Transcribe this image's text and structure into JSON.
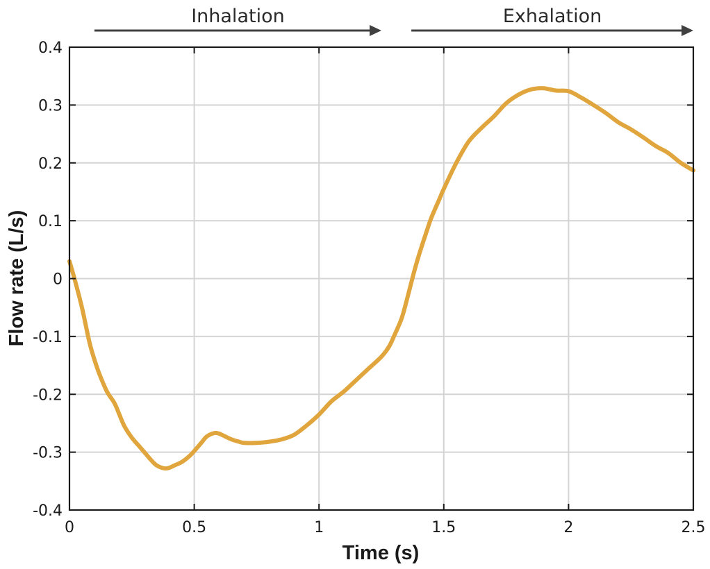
{
  "chart_data": {
    "type": "line",
    "title": "",
    "xlabel": "Time (s)",
    "ylabel": "Flow rate (L/s)",
    "xlim": [
      0,
      2.5
    ],
    "ylim": [
      -0.4,
      0.4
    ],
    "x_ticks": [
      0,
      0.5,
      1,
      1.5,
      2,
      2.5
    ],
    "x_tick_labels": [
      "0",
      "0.5",
      "1",
      "1.5",
      "2",
      "2.5"
    ],
    "y_ticks": [
      0.4,
      0.3,
      0.2,
      0.1,
      0,
      -0.1,
      -0.2,
      -0.3,
      -0.4
    ],
    "y_tick_labels": [
      "0.4",
      "0.3",
      "0.2",
      "0.1",
      "0",
      "-0.1",
      "-0.2",
      "-0.3",
      "-0.4"
    ],
    "grid": true,
    "annotations": [
      {
        "text": "Inhalation",
        "x_start": 0.1,
        "x_end": 1.25
      },
      {
        "text": "Exhalation",
        "x_start": 1.37,
        "x_end": 2.5
      }
    ],
    "series": [
      {
        "name": "Flow rate",
        "color": "#e0a53c",
        "x": [
          0,
          0.02,
          0.05,
          0.08,
          0.1,
          0.12,
          0.15,
          0.18,
          0.2,
          0.22,
          0.25,
          0.28,
          0.3,
          0.33,
          0.35,
          0.38,
          0.4,
          0.42,
          0.45,
          0.48,
          0.5,
          0.53,
          0.55,
          0.58,
          0.6,
          0.62,
          0.65,
          0.68,
          0.7,
          0.75,
          0.8,
          0.85,
          0.9,
          0.95,
          1.0,
          1.05,
          1.1,
          1.15,
          1.2,
          1.25,
          1.28,
          1.3,
          1.33,
          1.35,
          1.38,
          1.4,
          1.43,
          1.45,
          1.48,
          1.5,
          1.55,
          1.6,
          1.65,
          1.7,
          1.75,
          1.8,
          1.85,
          1.9,
          1.95,
          2.0,
          2.05,
          2.1,
          2.15,
          2.2,
          2.25,
          2.3,
          2.35,
          2.4,
          2.45,
          2.5
        ],
        "values": [
          0.03,
          0.0,
          -0.05,
          -0.11,
          -0.14,
          -0.165,
          -0.195,
          -0.215,
          -0.235,
          -0.255,
          -0.275,
          -0.29,
          -0.3,
          -0.315,
          -0.323,
          -0.328,
          -0.327,
          -0.323,
          -0.317,
          -0.307,
          -0.298,
          -0.283,
          -0.273,
          -0.267,
          -0.268,
          -0.272,
          -0.278,
          -0.282,
          -0.284,
          -0.284,
          -0.282,
          -0.278,
          -0.27,
          -0.254,
          -0.235,
          -0.212,
          -0.195,
          -0.175,
          -0.155,
          -0.135,
          -0.118,
          -0.1,
          -0.07,
          -0.04,
          0.01,
          0.04,
          0.08,
          0.105,
          0.135,
          0.155,
          0.2,
          0.237,
          0.26,
          0.28,
          0.303,
          0.318,
          0.327,
          0.329,
          0.325,
          0.324,
          0.313,
          0.3,
          0.286,
          0.27,
          0.258,
          0.244,
          0.229,
          0.217,
          0.2,
          0.187
        ]
      }
    ]
  }
}
